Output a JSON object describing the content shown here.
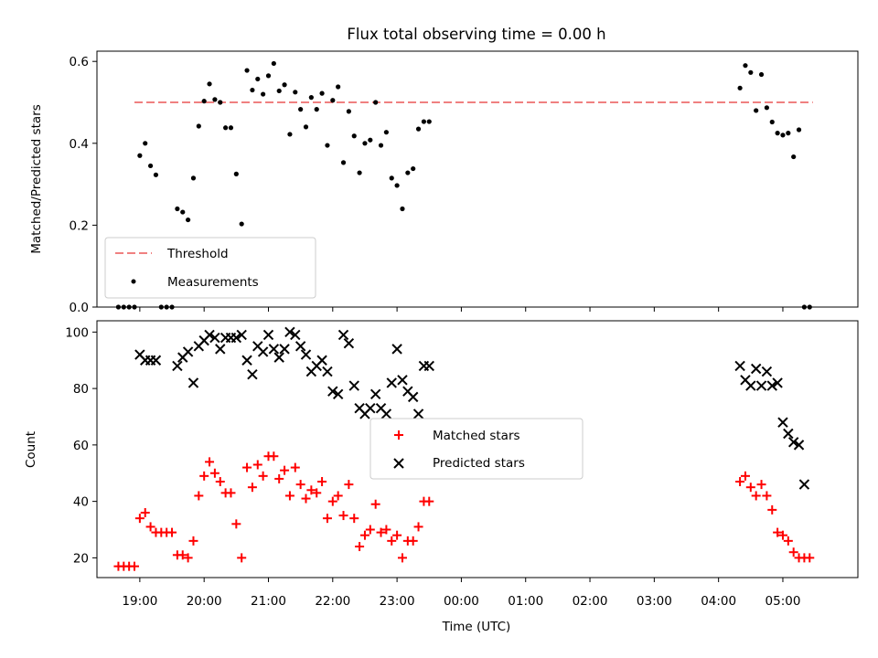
{
  "chart_data": [
    {
      "type": "scatter",
      "title": "Flux total observing time = 0.00 h",
      "ylabel": "Matched/Predicted stars",
      "xlabel": "",
      "ylim": [
        0,
        0.625
      ],
      "yticks": [
        0.0,
        0.2,
        0.4,
        0.6
      ],
      "ytick_labels": [
        "0.0",
        "0.2",
        "0.4",
        "0.6"
      ],
      "legend_position": "lower-left",
      "threshold": {
        "name": "Threshold",
        "value": 0.5,
        "x_start": "18:55",
        "x_end": "05:28",
        "color": "#f08080"
      },
      "series": [
        {
          "name": "Measurements",
          "color": "#000000",
          "points": [
            [
              "18:40",
              0.0
            ],
            [
              "18:45",
              0.0
            ],
            [
              "18:50",
              0.0
            ],
            [
              "18:55",
              0.0
            ],
            [
              "19:00",
              0.37
            ],
            [
              "19:05",
              0.4
            ],
            [
              "19:10",
              0.345
            ],
            [
              "19:15",
              0.323
            ],
            [
              "19:20",
              0.0
            ],
            [
              "19:25",
              0.0
            ],
            [
              "19:30",
              0.0
            ],
            [
              "19:35",
              0.24
            ],
            [
              "19:40",
              0.232
            ],
            [
              "19:45",
              0.213
            ],
            [
              "19:50",
              0.315
            ],
            [
              "19:55",
              0.442
            ],
            [
              "20:00",
              0.503
            ],
            [
              "20:05",
              0.545
            ],
            [
              "20:10",
              0.507
            ],
            [
              "20:15",
              0.5
            ],
            [
              "20:20",
              0.438
            ],
            [
              "20:25",
              0.438
            ],
            [
              "20:30",
              0.325
            ],
            [
              "20:35",
              0.203
            ],
            [
              "20:40",
              0.578
            ],
            [
              "20:45",
              0.53
            ],
            [
              "20:50",
              0.557
            ],
            [
              "20:55",
              0.52
            ],
            [
              "21:00",
              0.565
            ],
            [
              "21:05",
              0.595
            ],
            [
              "21:10",
              0.528
            ],
            [
              "21:15",
              0.543
            ],
            [
              "21:20",
              0.422
            ],
            [
              "21:25",
              0.525
            ],
            [
              "21:30",
              0.483
            ],
            [
              "21:35",
              0.44
            ],
            [
              "21:40",
              0.512
            ],
            [
              "21:45",
              0.483
            ],
            [
              "21:50",
              0.522
            ],
            [
              "21:55",
              0.395
            ],
            [
              "22:00",
              0.505
            ],
            [
              "22:05",
              0.538
            ],
            [
              "22:10",
              0.353
            ],
            [
              "22:15",
              0.478
            ],
            [
              "22:20",
              0.418
            ],
            [
              "22:25",
              0.328
            ],
            [
              "22:30",
              0.4
            ],
            [
              "22:35",
              0.408
            ],
            [
              "22:40",
              0.5
            ],
            [
              "22:45",
              0.395
            ],
            [
              "22:50",
              0.427
            ],
            [
              "22:55",
              0.315
            ],
            [
              "23:00",
              0.297
            ],
            [
              "23:05",
              0.24
            ],
            [
              "23:10",
              0.328
            ],
            [
              "23:15",
              0.338
            ],
            [
              "23:20",
              0.435
            ],
            [
              "23:25",
              0.453
            ],
            [
              "23:30",
              0.453
            ],
            [
              "04:20",
              0.535
            ],
            [
              "04:25",
              0.59
            ],
            [
              "04:30",
              0.573
            ],
            [
              "04:35",
              0.48
            ],
            [
              "04:40",
              0.568
            ],
            [
              "04:45",
              0.487
            ],
            [
              "04:50",
              0.452
            ],
            [
              "04:55",
              0.425
            ],
            [
              "05:00",
              0.42
            ],
            [
              "05:05",
              0.425
            ],
            [
              "05:10",
              0.367
            ],
            [
              "05:15",
              0.433
            ],
            [
              "05:20",
              0.0
            ],
            [
              "05:25",
              0.0
            ]
          ]
        }
      ]
    },
    {
      "type": "scatter",
      "title": "",
      "ylabel": "Count",
      "xlabel": "Time (UTC)",
      "ylim": [
        13,
        104
      ],
      "yticks": [
        20,
        40,
        60,
        80,
        100
      ],
      "ytick_labels": [
        "20",
        "40",
        "60",
        "80",
        "100"
      ],
      "xlim": [
        "18:20",
        "06:10"
      ],
      "xticks": [
        "19:00",
        "20:00",
        "21:00",
        "22:00",
        "23:00",
        "00:00",
        "01:00",
        "02:00",
        "03:00",
        "04:00",
        "05:00"
      ],
      "xtick_labels": [
        "19:00",
        "20:00",
        "21:00",
        "22:00",
        "23:00",
        "00:00",
        "01:00",
        "02:00",
        "03:00",
        "04:00",
        "05:00"
      ],
      "legend_position": "center",
      "series": [
        {
          "name": "Matched stars",
          "color": "#ff0000",
          "marker": "plus",
          "points": [
            [
              "18:40",
              17
            ],
            [
              "18:45",
              17
            ],
            [
              "18:50",
              17
            ],
            [
              "18:55",
              17
            ],
            [
              "19:00",
              34
            ],
            [
              "19:05",
              36
            ],
            [
              "19:10",
              31
            ],
            [
              "19:15",
              29
            ],
            [
              "19:20",
              29
            ],
            [
              "19:25",
              29
            ],
            [
              "19:30",
              29
            ],
            [
              "19:35",
              21
            ],
            [
              "19:40",
              21
            ],
            [
              "19:45",
              20
            ],
            [
              "19:50",
              26
            ],
            [
              "19:55",
              42
            ],
            [
              "20:00",
              49
            ],
            [
              "20:05",
              54
            ],
            [
              "20:10",
              50
            ],
            [
              "20:15",
              47
            ],
            [
              "20:20",
              43
            ],
            [
              "20:25",
              43
            ],
            [
              "20:30",
              32
            ],
            [
              "20:35",
              20
            ],
            [
              "20:40",
              52
            ],
            [
              "20:45",
              45
            ],
            [
              "20:50",
              53
            ],
            [
              "20:55",
              49
            ],
            [
              "21:00",
              56
            ],
            [
              "21:05",
              56
            ],
            [
              "21:10",
              48
            ],
            [
              "21:15",
              51
            ],
            [
              "21:20",
              42
            ],
            [
              "21:25",
              52
            ],
            [
              "21:30",
              46
            ],
            [
              "21:35",
              41
            ],
            [
              "21:40",
              44
            ],
            [
              "21:45",
              43
            ],
            [
              "21:50",
              47
            ],
            [
              "21:55",
              34
            ],
            [
              "22:00",
              40
            ],
            [
              "22:05",
              42
            ],
            [
              "22:10",
              35
            ],
            [
              "22:15",
              46
            ],
            [
              "22:20",
              34
            ],
            [
              "22:25",
              24
            ],
            [
              "22:30",
              28
            ],
            [
              "22:35",
              30
            ],
            [
              "22:40",
              39
            ],
            [
              "22:45",
              29
            ],
            [
              "22:50",
              30
            ],
            [
              "22:55",
              26
            ],
            [
              "23:00",
              28
            ],
            [
              "23:05",
              20
            ],
            [
              "23:10",
              26
            ],
            [
              "23:15",
              26
            ],
            [
              "23:20",
              31
            ],
            [
              "23:25",
              40
            ],
            [
              "23:30",
              40
            ],
            [
              "04:20",
              47
            ],
            [
              "04:25",
              49
            ],
            [
              "04:30",
              45
            ],
            [
              "04:35",
              42
            ],
            [
              "04:40",
              46
            ],
            [
              "04:45",
              42
            ],
            [
              "04:50",
              37
            ],
            [
              "04:55",
              29
            ],
            [
              "05:00",
              28
            ],
            [
              "05:05",
              26
            ],
            [
              "05:10",
              22
            ],
            [
              "05:15",
              20
            ],
            [
              "05:20",
              20
            ],
            [
              "05:25",
              20
            ]
          ]
        },
        {
          "name": "Predicted stars",
          "color": "#000000",
          "marker": "x",
          "points": [
            [
              "19:00",
              92
            ],
            [
              "19:05",
              90
            ],
            [
              "19:10",
              90
            ],
            [
              "19:15",
              90
            ],
            [
              "19:35",
              88
            ],
            [
              "19:40",
              91
            ],
            [
              "19:45",
              93
            ],
            [
              "19:50",
              82
            ],
            [
              "19:55",
              95
            ],
            [
              "20:00",
              97
            ],
            [
              "20:05",
              99
            ],
            [
              "20:10",
              98
            ],
            [
              "20:15",
              94
            ],
            [
              "20:20",
              98
            ],
            [
              "20:25",
              98
            ],
            [
              "20:30",
              98
            ],
            [
              "20:35",
              99
            ],
            [
              "20:40",
              90
            ],
            [
              "20:45",
              85
            ],
            [
              "20:50",
              95
            ],
            [
              "20:55",
              93
            ],
            [
              "21:00",
              99
            ],
            [
              "21:05",
              94
            ],
            [
              "21:10",
              91
            ],
            [
              "21:15",
              94
            ],
            [
              "21:20",
              100
            ],
            [
              "21:25",
              99
            ],
            [
              "21:30",
              95
            ],
            [
              "21:35",
              92
            ],
            [
              "21:40",
              86
            ],
            [
              "21:45",
              88
            ],
            [
              "21:50",
              90
            ],
            [
              "21:55",
              86
            ],
            [
              "22:00",
              79
            ],
            [
              "22:05",
              78
            ],
            [
              "22:10",
              99
            ],
            [
              "22:15",
              96
            ],
            [
              "22:20",
              81
            ],
            [
              "22:25",
              73
            ],
            [
              "22:30",
              71
            ],
            [
              "22:35",
              73
            ],
            [
              "22:40",
              78
            ],
            [
              "22:45",
              73
            ],
            [
              "22:50",
              71
            ],
            [
              "22:55",
              82
            ],
            [
              "23:00",
              94
            ],
            [
              "23:05",
              83
            ],
            [
              "23:10",
              79
            ],
            [
              "23:15",
              77
            ],
            [
              "23:20",
              71
            ],
            [
              "23:25",
              88
            ],
            [
              "23:30",
              88
            ],
            [
              "04:20",
              88
            ],
            [
              "04:25",
              83
            ],
            [
              "04:30",
              81
            ],
            [
              "04:35",
              87
            ],
            [
              "04:40",
              81
            ],
            [
              "04:45",
              86
            ],
            [
              "04:50",
              81
            ],
            [
              "04:55",
              82
            ],
            [
              "05:00",
              68
            ],
            [
              "05:05",
              64
            ],
            [
              "05:10",
              61
            ],
            [
              "05:15",
              60
            ],
            [
              "05:20",
              46
            ]
          ]
        }
      ]
    }
  ]
}
